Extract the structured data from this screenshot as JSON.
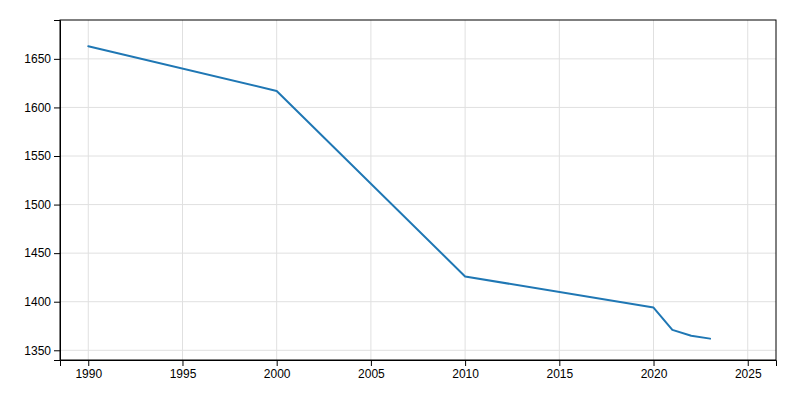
{
  "chart_data": {
    "type": "line",
    "x": [
      1990,
      2000,
      2010,
      2020,
      2021,
      2022,
      2023
    ],
    "values": [
      1663,
      1617,
      1426,
      1394,
      1371,
      1365,
      1362
    ],
    "xlim": [
      1988.5,
      2026.5
    ],
    "ylim": [
      1340,
      1690
    ],
    "xticks": [
      1990,
      1995,
      2000,
      2005,
      2010,
      2015,
      2020,
      2025
    ],
    "yticks": [
      1350,
      1400,
      1450,
      1500,
      1550,
      1600,
      1650
    ],
    "grid": true
  }
}
